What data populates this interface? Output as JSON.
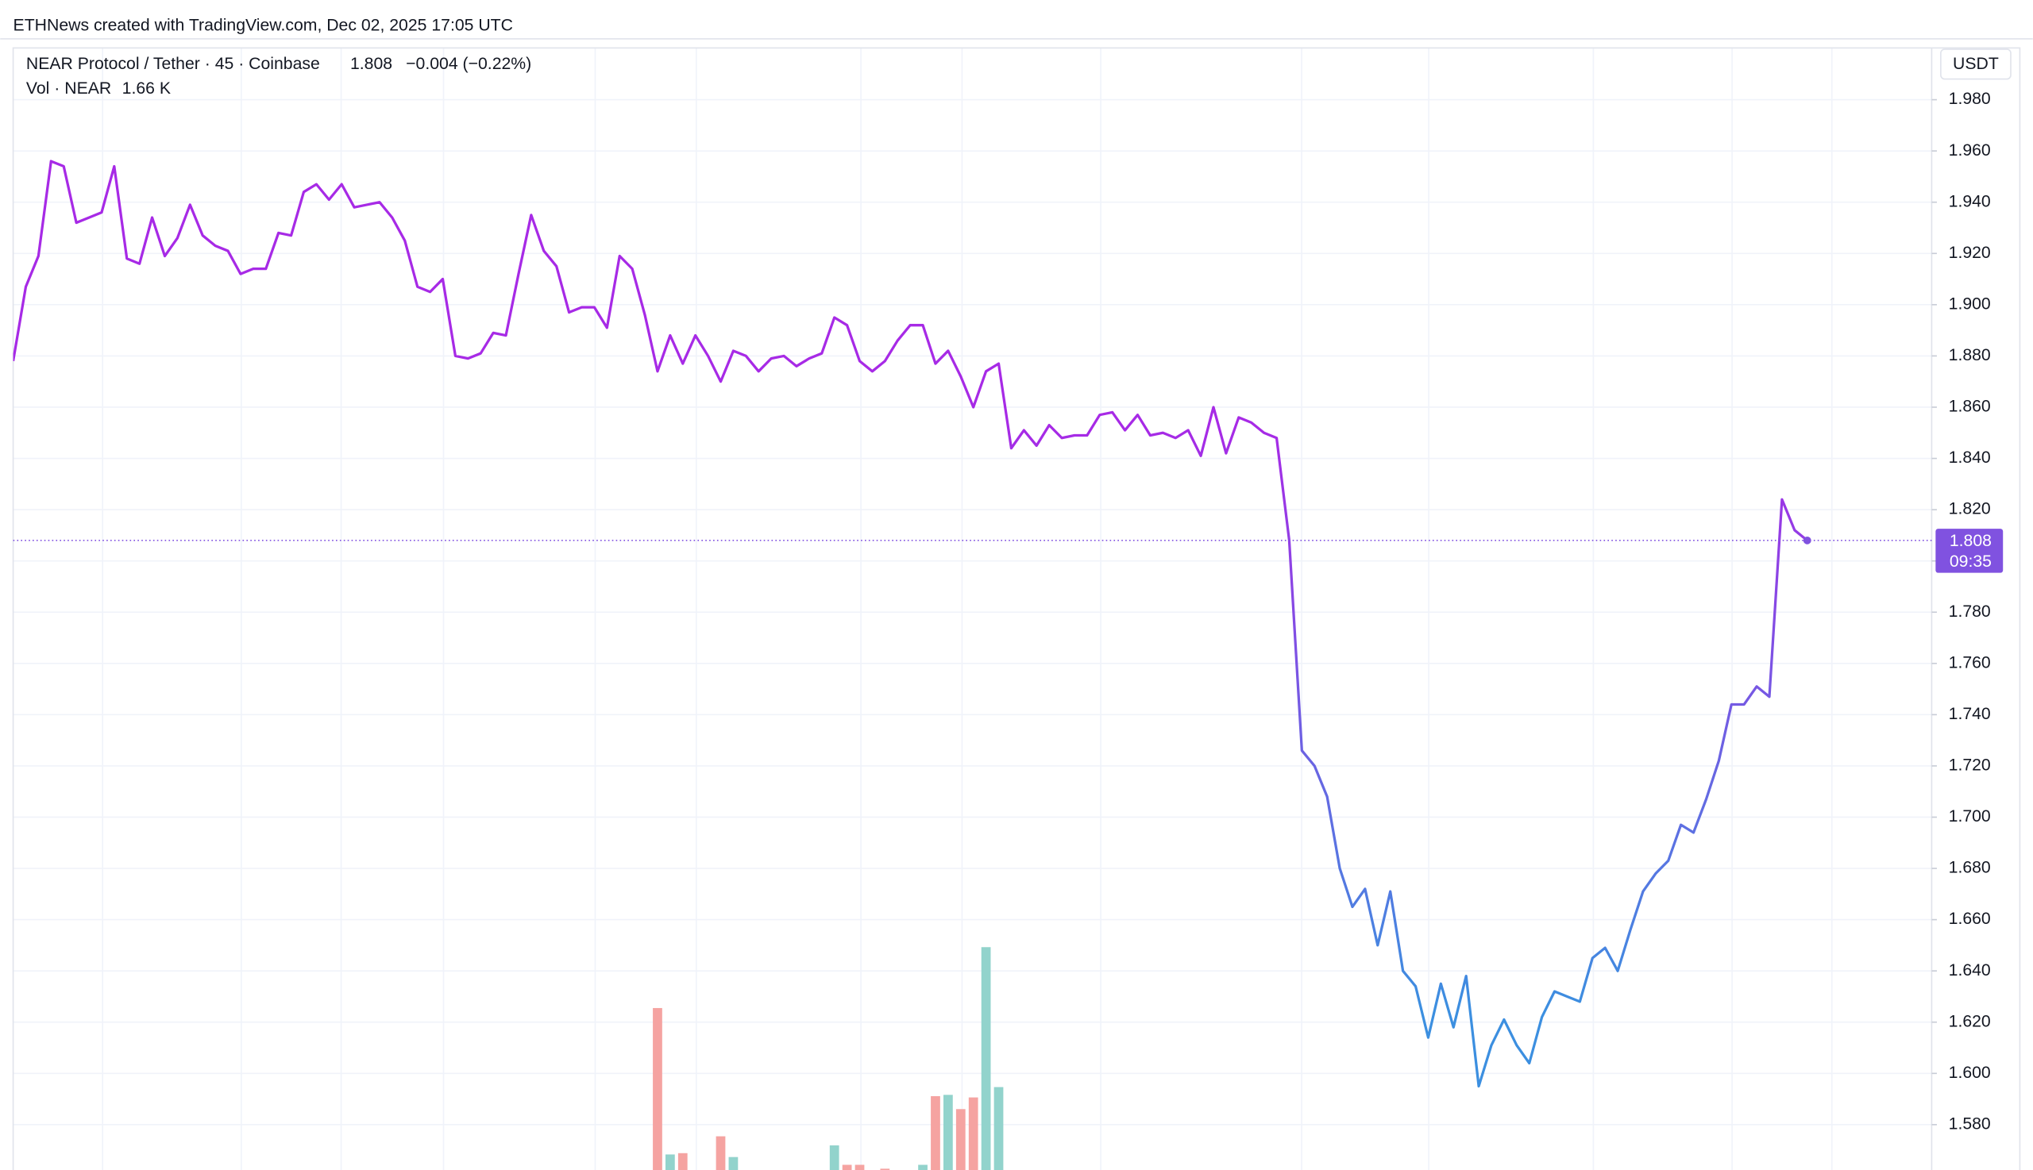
{
  "header": {
    "credit": "ETHNews created with TradingView.com, Dec 02, 2025 17:05 UTC"
  },
  "chart_data": {
    "type": "line",
    "axis_unit": "USDT",
    "change": "−0.004 (−0.22%)",
    "countdown": "09:35",
    "ylim": [
      1.5623,
      2.0002
    ],
    "yticks": [
      {
        "value": 1.58,
        "label": "1.580"
      },
      {
        "value": 1.6,
        "label": "1.600"
      },
      {
        "value": 1.62,
        "label": "1.620"
      },
      {
        "value": 1.64,
        "label": "1.640"
      },
      {
        "value": 1.66,
        "label": "1.660"
      },
      {
        "value": 1.68,
        "label": "1.680"
      },
      {
        "value": 1.7,
        "label": "1.700"
      },
      {
        "value": 1.72,
        "label": "1.720"
      },
      {
        "value": 1.74,
        "label": "1.740"
      },
      {
        "value": 1.76,
        "label": "1.760"
      },
      {
        "value": 1.78,
        "label": "1.780"
      },
      {
        "value": 1.8,
        "label": "1.800"
      },
      {
        "value": 1.82,
        "label": "1.820"
      },
      {
        "value": 1.84,
        "label": "1.840"
      },
      {
        "value": 1.86,
        "label": "1.860"
      },
      {
        "value": 1.88,
        "label": "1.880"
      },
      {
        "value": 1.9,
        "label": "1.900"
      },
      {
        "value": 1.92,
        "label": "1.920"
      },
      {
        "value": 1.94,
        "label": "1.940"
      },
      {
        "value": 1.96,
        "label": "1.960"
      },
      {
        "value": 1.98,
        "label": "1.980"
      }
    ],
    "grid": true,
    "series": [
      {
        "name": "NEAR Protocol / Tether · 45 · Coinbase",
        "colors": [
          "#a72ae6",
          "#3c8fe0"
        ],
        "label_color": "#8052e0",
        "values": [
          1.878,
          1.907,
          1.919,
          1.956,
          1.954,
          1.932,
          1.934,
          1.936,
          1.954,
          1.918,
          1.916,
          1.934,
          1.919,
          1.926,
          1.939,
          1.927,
          1.923,
          1.921,
          1.912,
          1.914,
          1.914,
          1.928,
          1.927,
          1.944,
          1.947,
          1.941,
          1.947,
          1.938,
          1.939,
          1.94,
          1.934,
          1.925,
          1.907,
          1.905,
          1.91,
          1.88,
          1.879,
          1.881,
          1.889,
          1.888,
          1.912,
          1.935,
          1.921,
          1.915,
          1.897,
          1.899,
          1.899,
          1.891,
          1.919,
          1.914,
          1.896,
          1.874,
          1.888,
          1.877,
          1.888,
          1.88,
          1.87,
          1.882,
          1.88,
          1.874,
          1.879,
          1.88,
          1.876,
          1.879,
          1.881,
          1.895,
          1.892,
          1.878,
          1.874,
          1.878,
          1.886,
          1.892,
          1.892,
          1.877,
          1.882,
          1.872,
          1.86,
          1.874,
          1.877,
          1.844,
          1.851,
          1.845,
          1.853,
          1.848,
          1.849,
          1.849,
          1.857,
          1.858,
          1.851,
          1.857,
          1.849,
          1.85,
          1.848,
          1.851,
          1.841,
          1.86,
          1.842,
          1.856,
          1.854,
          1.85,
          1.848,
          1.808,
          1.726,
          1.72,
          1.708,
          1.68,
          1.665,
          1.672,
          1.65,
          1.671,
          1.64,
          1.634,
          1.614,
          1.635,
          1.618,
          1.638,
          1.595,
          1.611,
          1.621,
          1.611,
          1.604,
          1.622,
          1.632,
          1.63,
          1.628,
          1.645,
          1.649,
          1.64,
          1.656,
          1.671,
          1.678,
          1.683,
          1.697,
          1.694,
          1.707,
          1.722,
          1.744,
          1.744,
          1.751,
          1.747,
          1.824,
          1.812,
          1.808
        ]
      }
    ],
    "volume": {
      "name": "Vol · NEAR",
      "last_label": "1.66 K",
      "label_color": "#26a69a",
      "ylim": [
        0,
        2
      ],
      "values": [
        null,
        null,
        null,
        null,
        null,
        null,
        null,
        null,
        null,
        null,
        null,
        null,
        null,
        null,
        null,
        null,
        null,
        null,
        null,
        null,
        null,
        null,
        null,
        null,
        null,
        null,
        null,
        null,
        null,
        null,
        null,
        null,
        null,
        null,
        null,
        null,
        null,
        null,
        null,
        null,
        null,
        null,
        null,
        null,
        null,
        null,
        null,
        null,
        null,
        null,
        null,
        1.25,
        0.12,
        0.13,
        null,
        null,
        0.26,
        0.1,
        null,
        null,
        null,
        null,
        null,
        null,
        null,
        0.19,
        0.04,
        0.04,
        null,
        0.01,
        null,
        null,
        0.04,
        0.57,
        0.58,
        0.47,
        0.56,
        1.72,
        0.64,
        null,
        null,
        null,
        null,
        null,
        null,
        null,
        null,
        null,
        null,
        null,
        null,
        null,
        null,
        null,
        null,
        null,
        null,
        null,
        null,
        null,
        null,
        null,
        null,
        null,
        null,
        null,
        null,
        null,
        null,
        null,
        null,
        null,
        null,
        null,
        null,
        null,
        null,
        null,
        null,
        null,
        null,
        null,
        null,
        null,
        null,
        null,
        null,
        null,
        null,
        null,
        null,
        null,
        null,
        null,
        null,
        null,
        null,
        null,
        null,
        null,
        null,
        null,
        null
      ],
      "colors": [
        null,
        null,
        null,
        null,
        null,
        null,
        null,
        null,
        null,
        null,
        null,
        null,
        null,
        null,
        null,
        null,
        null,
        null,
        null,
        null,
        null,
        null,
        null,
        null,
        null,
        null,
        null,
        null,
        null,
        null,
        null,
        null,
        null,
        null,
        null,
        null,
        null,
        null,
        null,
        null,
        null,
        null,
        null,
        null,
        null,
        null,
        null,
        null,
        null,
        null,
        null,
        "#f5a3a1",
        "#92d3cc",
        "#f5a3a1",
        null,
        null,
        "#f5a3a1",
        "#92d3cc",
        null,
        null,
        null,
        null,
        null,
        null,
        null,
        "#92d3cc",
        "#f5a3a1",
        "#f5a3a1",
        null,
        "#f5a3a1",
        null,
        null,
        "#92d3cc",
        "#f5a3a1",
        "#92d3cc",
        "#f5a3a1",
        "#f5a3a1",
        "#92d3cc",
        "#92d3cc",
        null,
        null,
        null,
        null,
        null,
        null,
        null,
        null,
        null,
        null,
        null,
        null,
        null,
        null,
        null,
        null,
        null,
        null,
        null,
        null,
        null,
        null,
        null,
        null,
        null,
        null,
        null,
        null,
        null,
        null,
        null,
        null,
        null,
        null,
        null,
        null,
        null,
        null,
        null,
        null,
        null,
        null,
        null,
        null,
        null,
        null,
        null,
        null,
        null,
        null,
        null,
        null,
        null,
        null,
        null,
        null,
        null,
        null,
        null,
        null,
        null,
        null,
        null,
        null
      ]
    }
  }
}
